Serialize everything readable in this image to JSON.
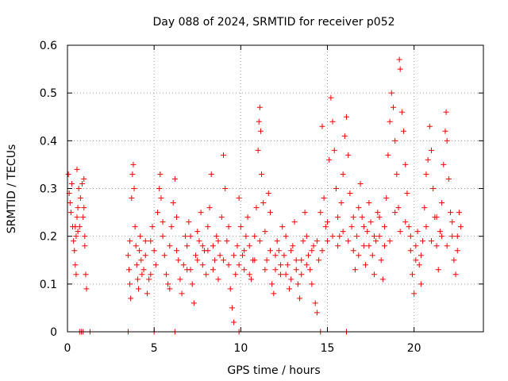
{
  "chart_data": {
    "type": "scatter",
    "title": "Day 088 of 2024, SRMTID for receiver p052",
    "xlabel": "GPS time / hours",
    "ylabel": "SRMTID / TECUs",
    "xlim": [
      0,
      24
    ],
    "ylim": [
      0,
      0.6
    ],
    "xticks": [
      0,
      5,
      10,
      15,
      20
    ],
    "xtick_labels": [
      "0",
      "5",
      "10",
      "15",
      "20"
    ],
    "yticks": [
      0,
      0.1,
      0.2,
      0.3,
      0.4,
      0.5,
      0.6
    ],
    "ytick_labels": [
      "0",
      "0.1",
      "0.2",
      "0.3",
      "0.4",
      "0.5",
      "0.6"
    ],
    "grid": true,
    "marker": "plus",
    "color": "#ff0000",
    "series": [
      {
        "name": "SRMTID",
        "points": [
          [
            0.05,
            0.33
          ],
          [
            0.1,
            0.29
          ],
          [
            0.15,
            0.27
          ],
          [
            0.2,
            0.25
          ],
          [
            0.25,
            0.31
          ],
          [
            0.3,
            0.22
          ],
          [
            0.35,
            0.19
          ],
          [
            0.4,
            0.17
          ],
          [
            0.45,
            0.14
          ],
          [
            0.5,
            0.12
          ],
          [
            0.55,
            0.24
          ],
          [
            0.6,
            0.21
          ],
          [
            0.5,
            0.2
          ],
          [
            0.45,
            0.22
          ],
          [
            0.55,
            0.34
          ],
          [
            0.6,
            0.26
          ],
          [
            0.65,
            0.3
          ],
          [
            0.7,
            0.22
          ],
          [
            0.75,
            0.28
          ],
          [
            0.85,
            0.31
          ],
          [
            0.9,
            0.24
          ],
          [
            0.95,
            0.32
          ],
          [
            1.0,
            0.18
          ],
          [
            1.05,
            0.12
          ],
          [
            1.1,
            0.09
          ],
          [
            0.95,
            0.26
          ],
          [
            1.0,
            0.2
          ],
          [
            0.7,
            0.0
          ],
          [
            0.8,
            0.0
          ],
          [
            0.9,
            0.0
          ],
          [
            1.3,
            0.0
          ],
          [
            3.5,
            0.0
          ],
          [
            5.0,
            0.0
          ],
          [
            6.2,
            0.0
          ],
          [
            9.9,
            0.0
          ],
          [
            14.6,
            0.0
          ],
          [
            16.1,
            0.0
          ],
          [
            3.5,
            0.16
          ],
          [
            3.55,
            0.13
          ],
          [
            3.6,
            0.1
          ],
          [
            3.65,
            0.07
          ],
          [
            3.6,
            0.19
          ],
          [
            3.7,
            0.28
          ],
          [
            3.75,
            0.33
          ],
          [
            3.8,
            0.35
          ],
          [
            3.85,
            0.3
          ],
          [
            3.9,
            0.22
          ],
          [
            3.95,
            0.18
          ],
          [
            4.0,
            0.14
          ],
          [
            4.05,
            0.11
          ],
          [
            4.1,
            0.09
          ],
          [
            4.15,
            0.17
          ],
          [
            4.2,
            0.2
          ],
          [
            4.25,
            0.15
          ],
          [
            4.3,
            0.12
          ],
          [
            4.4,
            0.13
          ],
          [
            4.5,
            0.16
          ],
          [
            4.6,
            0.08
          ],
          [
            4.7,
            0.11
          ],
          [
            4.8,
            0.19
          ],
          [
            4.9,
            0.22
          ],
          [
            5.0,
            0.17
          ],
          [
            5.1,
            0.14
          ],
          [
            5.2,
            0.25
          ],
          [
            5.3,
            0.3
          ],
          [
            5.35,
            0.33
          ],
          [
            5.4,
            0.28
          ],
          [
            5.5,
            0.2
          ],
          [
            5.6,
            0.16
          ],
          [
            5.7,
            0.12
          ],
          [
            5.8,
            0.1
          ],
          [
            5.9,
            0.18
          ],
          [
            6.0,
            0.22
          ],
          [
            6.1,
            0.27
          ],
          [
            6.2,
            0.32
          ],
          [
            6.3,
            0.24
          ],
          [
            6.4,
            0.15
          ],
          [
            6.5,
            0.11
          ],
          [
            6.6,
            0.08
          ],
          [
            6.7,
            0.14
          ],
          [
            6.8,
            0.2
          ],
          [
            6.9,
            0.18
          ],
          [
            7.0,
            0.23
          ],
          [
            7.1,
            0.13
          ],
          [
            7.2,
            0.1
          ],
          [
            7.3,
            0.06
          ],
          [
            7.4,
            0.16
          ],
          [
            7.5,
            0.21
          ],
          [
            7.6,
            0.19
          ],
          [
            7.7,
            0.25
          ],
          [
            7.8,
            0.14
          ],
          [
            7.9,
            0.17
          ],
          [
            8.0,
            0.12
          ],
          [
            8.1,
            0.22
          ],
          [
            8.2,
            0.26
          ],
          [
            8.3,
            0.33
          ],
          [
            8.4,
            0.18
          ],
          [
            8.5,
            0.15
          ],
          [
            8.6,
            0.2
          ],
          [
            8.7,
            0.11
          ],
          [
            8.8,
            0.16
          ],
          [
            8.9,
            0.24
          ],
          [
            9.0,
            0.37
          ],
          [
            9.1,
            0.3
          ],
          [
            9.2,
            0.19
          ],
          [
            9.3,
            0.14
          ],
          [
            9.4,
            0.09
          ],
          [
            9.5,
            0.05
          ],
          [
            9.6,
            0.02
          ],
          [
            9.7,
            0.12
          ],
          [
            9.8,
            0.18
          ],
          [
            9.9,
            0.28
          ],
          [
            10.0,
            0.22
          ],
          [
            10.1,
            0.16
          ],
          [
            10.2,
            0.13
          ],
          [
            10.3,
            0.2
          ],
          [
            10.4,
            0.24
          ],
          [
            10.5,
            0.18
          ],
          [
            10.6,
            0.11
          ],
          [
            10.7,
            0.15
          ],
          [
            10.8,
            0.2
          ],
          [
            10.9,
            0.26
          ],
          [
            11.0,
            0.38
          ],
          [
            11.05,
            0.44
          ],
          [
            11.1,
            0.47
          ],
          [
            11.15,
            0.42
          ],
          [
            11.2,
            0.33
          ],
          [
            11.3,
            0.27
          ],
          [
            11.4,
            0.21
          ],
          [
            11.5,
            0.15
          ],
          [
            11.6,
            0.29
          ],
          [
            11.7,
            0.25
          ],
          [
            11.8,
            0.1
          ],
          [
            11.9,
            0.08
          ],
          [
            12.0,
            0.13
          ],
          [
            12.1,
            0.19
          ],
          [
            12.2,
            0.17
          ],
          [
            12.3,
            0.12
          ],
          [
            12.4,
            0.22
          ],
          [
            12.5,
            0.16
          ],
          [
            12.6,
            0.2
          ],
          [
            12.7,
            0.14
          ],
          [
            12.8,
            0.09
          ],
          [
            12.9,
            0.11
          ],
          [
            13.0,
            0.18
          ],
          [
            13.1,
            0.23
          ],
          [
            13.2,
            0.15
          ],
          [
            13.3,
            0.1
          ],
          [
            13.4,
            0.07
          ],
          [
            13.5,
            0.12
          ],
          [
            13.6,
            0.19
          ],
          [
            13.7,
            0.25
          ],
          [
            13.8,
            0.2
          ],
          [
            13.9,
            0.16
          ],
          [
            14.0,
            0.13
          ],
          [
            14.1,
            0.1
          ],
          [
            14.2,
            0.18
          ],
          [
            14.3,
            0.06
          ],
          [
            14.4,
            0.04
          ],
          [
            14.5,
            0.15
          ],
          [
            14.6,
            0.25
          ],
          [
            14.7,
            0.43
          ],
          [
            14.8,
            0.28
          ],
          [
            14.9,
            0.22
          ],
          [
            15.0,
            0.19
          ],
          [
            15.1,
            0.36
          ],
          [
            15.2,
            0.49
          ],
          [
            15.3,
            0.44
          ],
          [
            15.4,
            0.38
          ],
          [
            15.5,
            0.3
          ],
          [
            15.6,
            0.24
          ],
          [
            15.7,
            0.2
          ],
          [
            15.8,
            0.27
          ],
          [
            15.9,
            0.33
          ],
          [
            16.0,
            0.41
          ],
          [
            16.1,
            0.45
          ],
          [
            16.2,
            0.37
          ],
          [
            16.3,
            0.29
          ],
          [
            16.4,
            0.22
          ],
          [
            16.5,
            0.17
          ],
          [
            16.6,
            0.13
          ],
          [
            16.7,
            0.2
          ],
          [
            16.8,
            0.26
          ],
          [
            16.9,
            0.31
          ],
          [
            17.0,
            0.24
          ],
          [
            17.1,
            0.18
          ],
          [
            17.2,
            0.14
          ],
          [
            17.3,
            0.21
          ],
          [
            17.4,
            0.27
          ],
          [
            17.5,
            0.23
          ],
          [
            17.6,
            0.16
          ],
          [
            17.7,
            0.12
          ],
          [
            17.8,
            0.19
          ],
          [
            17.9,
            0.25
          ],
          [
            18.0,
            0.2
          ],
          [
            18.1,
            0.15
          ],
          [
            18.2,
            0.11
          ],
          [
            18.3,
            0.18
          ],
          [
            18.4,
            0.28
          ],
          [
            18.5,
            0.37
          ],
          [
            18.6,
            0.44
          ],
          [
            18.7,
            0.5
          ],
          [
            18.8,
            0.47
          ],
          [
            18.9,
            0.4
          ],
          [
            19.0,
            0.33
          ],
          [
            19.1,
            0.26
          ],
          [
            19.15,
            0.57
          ],
          [
            19.2,
            0.55
          ],
          [
            19.3,
            0.46
          ],
          [
            19.4,
            0.42
          ],
          [
            19.5,
            0.35
          ],
          [
            19.6,
            0.29
          ],
          [
            19.7,
            0.22
          ],
          [
            19.8,
            0.17
          ],
          [
            19.9,
            0.12
          ],
          [
            20.0,
            0.08
          ],
          [
            20.1,
            0.15
          ],
          [
            20.2,
            0.21
          ],
          [
            20.3,
            0.14
          ],
          [
            20.4,
            0.1
          ],
          [
            20.5,
            0.19
          ],
          [
            20.6,
            0.26
          ],
          [
            20.7,
            0.33
          ],
          [
            20.8,
            0.36
          ],
          [
            20.9,
            0.43
          ],
          [
            21.0,
            0.38
          ],
          [
            21.1,
            0.3
          ],
          [
            21.2,
            0.24
          ],
          [
            21.3,
            0.18
          ],
          [
            21.4,
            0.13
          ],
          [
            21.5,
            0.21
          ],
          [
            21.6,
            0.27
          ],
          [
            21.7,
            0.35
          ],
          [
            21.8,
            0.42
          ],
          [
            21.85,
            0.46
          ],
          [
            21.9,
            0.4
          ],
          [
            22.0,
            0.32
          ],
          [
            22.1,
            0.25
          ],
          [
            22.2,
            0.2
          ],
          [
            22.3,
            0.15
          ],
          [
            22.4,
            0.12
          ],
          [
            22.5,
            0.2
          ],
          [
            22.6,
            0.25
          ],
          [
            22.7,
            0.22
          ],
          [
            4.5,
            0.19
          ],
          [
            4.8,
            0.12
          ],
          [
            5.5,
            0.23
          ],
          [
            5.9,
            0.09
          ],
          [
            6.3,
            0.17
          ],
          [
            6.9,
            0.13
          ],
          [
            7.1,
            0.2
          ],
          [
            7.5,
            0.15
          ],
          [
            7.8,
            0.18
          ],
          [
            8.1,
            0.17
          ],
          [
            8.4,
            0.13
          ],
          [
            8.7,
            0.19
          ],
          [
            9.0,
            0.15
          ],
          [
            9.3,
            0.22
          ],
          [
            9.6,
            0.16
          ],
          [
            9.9,
            0.14
          ],
          [
            10.2,
            0.17
          ],
          [
            10.5,
            0.12
          ],
          [
            10.8,
            0.15
          ],
          [
            11.1,
            0.19
          ],
          [
            11.4,
            0.13
          ],
          [
            11.7,
            0.17
          ],
          [
            12.0,
            0.16
          ],
          [
            12.3,
            0.14
          ],
          [
            12.6,
            0.12
          ],
          [
            12.9,
            0.17
          ],
          [
            13.2,
            0.13
          ],
          [
            13.5,
            0.15
          ],
          [
            13.8,
            0.14
          ],
          [
            14.1,
            0.17
          ],
          [
            14.4,
            0.19
          ],
          [
            14.7,
            0.17
          ],
          [
            15.0,
            0.23
          ],
          [
            15.3,
            0.2
          ],
          [
            15.6,
            0.18
          ],
          [
            15.9,
            0.21
          ],
          [
            16.2,
            0.19
          ],
          [
            16.5,
            0.24
          ],
          [
            16.8,
            0.16
          ],
          [
            17.1,
            0.22
          ],
          [
            17.4,
            0.18
          ],
          [
            17.7,
            0.2
          ],
          [
            18.0,
            0.24
          ],
          [
            18.3,
            0.22
          ],
          [
            18.6,
            0.19
          ],
          [
            18.9,
            0.25
          ],
          [
            19.2,
            0.21
          ],
          [
            19.5,
            0.23
          ],
          [
            19.8,
            0.2
          ],
          [
            20.1,
            0.18
          ],
          [
            20.4,
            0.16
          ],
          [
            20.7,
            0.22
          ],
          [
            21.0,
            0.19
          ],
          [
            21.3,
            0.24
          ],
          [
            21.6,
            0.2
          ],
          [
            21.9,
            0.18
          ],
          [
            22.2,
            0.23
          ],
          [
            22.5,
            0.17
          ]
        ]
      }
    ]
  }
}
